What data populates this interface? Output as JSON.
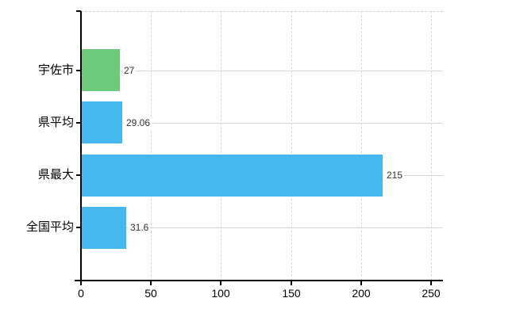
{
  "chart_data": {
    "type": "bar",
    "orientation": "horizontal",
    "title": "",
    "xlabel": "",
    "ylabel": "",
    "categories": [
      "宇佐市",
      "県平均",
      "県最大",
      "全国平均"
    ],
    "values": [
      27,
      29.06,
      215,
      31.6
    ],
    "value_labels": [
      "27",
      "29.06",
      "215",
      "31.6"
    ],
    "series": [
      {
        "name": "",
        "values": [
          27,
          29.06,
          215,
          31.6
        ]
      }
    ],
    "bar_colors": [
      "#6ecb7d",
      "#45b8ef",
      "#45b8ef",
      "#45b8ef"
    ],
    "xlim": [
      0,
      250
    ],
    "x_ticks": [
      0,
      50,
      100,
      150,
      200,
      250
    ],
    "x_tick_labels": [
      "0",
      "50",
      "100",
      "150",
      "200",
      "250"
    ],
    "grid": true,
    "legend": "none",
    "colors": {
      "background": "#ffffff",
      "axis": "#000000",
      "gridline": "#d8d8d8",
      "top_border": "#d4d4d4",
      "category_label": "#000000",
      "tick_label": "#000000",
      "value_label": "#333333",
      "bar_green": "#6ecb7d",
      "bar_blue": "#45b8ef"
    }
  }
}
